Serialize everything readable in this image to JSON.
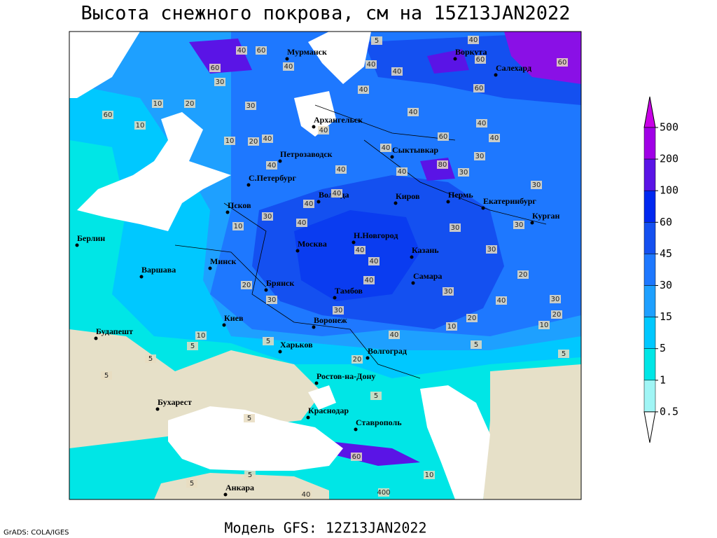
{
  "title": "Высота снежного покрова, см на 15Z13JAN2022",
  "footer": "Модель GFS: 12Z13JAN2022",
  "credit": "GrADS: COLA/IGES",
  "cities": [
    "Мурманск",
    "Воркута",
    "Салехард",
    "Архангельск",
    "Сыктывкар",
    "Петрозаводск",
    "С.Петербург",
    "Вологда",
    "Киров",
    "Пермь",
    "Екатеринбург",
    "Курган",
    "Псков",
    "Берлин",
    "Минск",
    "Москва",
    "Н.Новгород",
    "Казань",
    "Варшава",
    "Брянск",
    "Тамбов",
    "Самара",
    "Киев",
    "Воронеж",
    "Будапешт",
    "Харьков",
    "Волгоград",
    "Ростов-на-Дону",
    "Бухарест",
    "Краснодар",
    "Ставрополь",
    "Анкара"
  ],
  "contour_labels": [
    40,
    60,
    40,
    60,
    30,
    5,
    40,
    60,
    60,
    40,
    40,
    40,
    60,
    10,
    20,
    30,
    60,
    10,
    40,
    40,
    40,
    60,
    40,
    10,
    20,
    40,
    40,
    30,
    80,
    30,
    40,
    40,
    40,
    30,
    40,
    40,
    30,
    40,
    10,
    30,
    30,
    30,
    40,
    40,
    20,
    20,
    30,
    40,
    30,
    40,
    30,
    30,
    20,
    10,
    20,
    10,
    10,
    40,
    5,
    5,
    5,
    5,
    5,
    20,
    5,
    5,
    5,
    60,
    10,
    5,
    40,
    400,
    5
  ],
  "legend": {
    "ticks": [
      0.5,
      1,
      5,
      15,
      30,
      45,
      60,
      100,
      200,
      500
    ],
    "colors": [
      "#ffffff",
      "#a0f5f5",
      "#00e6e6",
      "#00c8ff",
      "#1ea0ff",
      "#1e78ff",
      "#1450f0",
      "#0028f0",
      "#5a14e6",
      "#a000e6",
      "#c800e6"
    ]
  }
}
